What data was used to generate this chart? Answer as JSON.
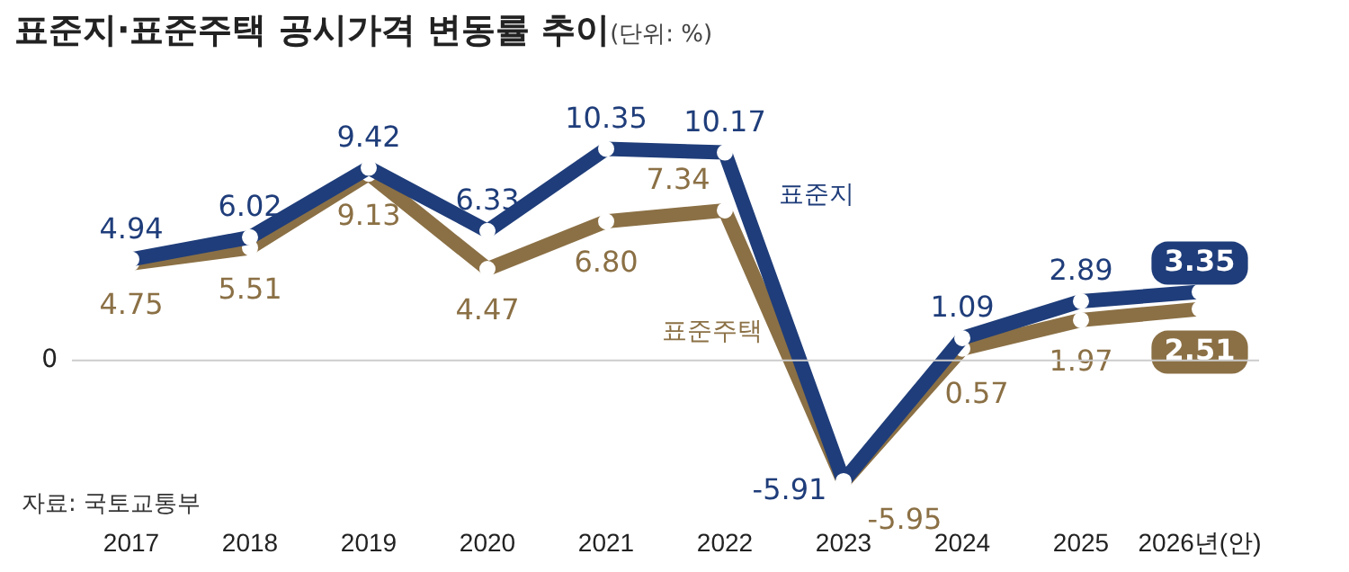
{
  "chart_data": {
    "type": "line",
    "title": "표준지·표준주택 공시가격 변동률 추이",
    "subtitle": "(단위: %)",
    "categories": [
      "2017",
      "2018",
      "2019",
      "2020",
      "2021",
      "2022",
      "2023",
      "2024",
      "2025",
      "2026년(안)"
    ],
    "series": [
      {
        "name": "표준지",
        "color": "#1f3d7a",
        "values": [
          4.94,
          6.02,
          9.42,
          6.33,
          10.35,
          10.17,
          -5.91,
          1.09,
          2.89,
          3.35
        ],
        "value_labels": [
          "4.94",
          "6.02",
          "9.42",
          "6.33",
          "10.35",
          "10.17",
          "-5.91",
          "1.09",
          "2.89",
          "3.35"
        ]
      },
      {
        "name": "표준주택",
        "color": "#8b7045",
        "values": [
          4.75,
          5.51,
          9.13,
          4.47,
          6.8,
          7.34,
          -5.95,
          0.57,
          1.97,
          2.51
        ],
        "value_labels": [
          "4.75",
          "5.51",
          "9.13",
          "4.47",
          "6.80",
          "7.34",
          "-5.95",
          "0.57",
          "1.97",
          "2.51"
        ]
      }
    ],
    "ref_lines": [
      {
        "axis": "y",
        "value": 0,
        "label": "0",
        "color": "#cccccc"
      }
    ],
    "legend": false,
    "marker": "circle",
    "line_style": "solid",
    "annotations": [
      "자료: 국토교통부"
    ]
  }
}
